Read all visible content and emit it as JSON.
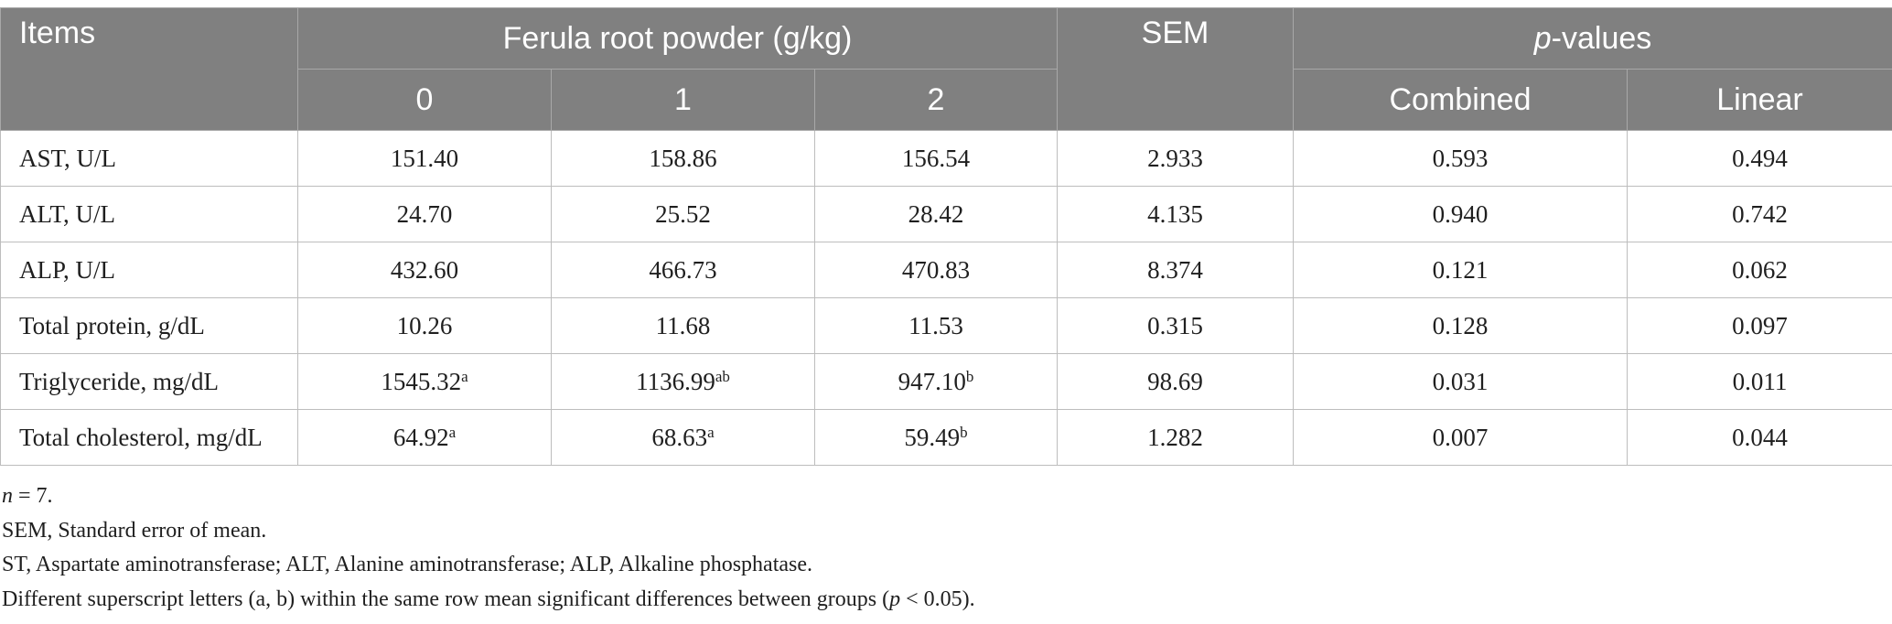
{
  "table": {
    "header": {
      "items": "Items",
      "group": "Ferula root powder (g/kg)",
      "levels": [
        "0",
        "1",
        "2"
      ],
      "sem": "SEM",
      "p_values": {
        "italic": "p",
        "rest": "-values"
      },
      "p_sub": [
        "Combined",
        "Linear"
      ]
    },
    "rows": [
      {
        "label": "AST, U/L",
        "v0": "151.40",
        "v0_sup": "",
        "v1": "158.86",
        "v1_sup": "",
        "v2": "156.54",
        "v2_sup": "",
        "sem": "2.933",
        "combined": "0.593",
        "linear": "0.494"
      },
      {
        "label": "ALT, U/L",
        "v0": "24.70",
        "v0_sup": "",
        "v1": "25.52",
        "v1_sup": "",
        "v2": "28.42",
        "v2_sup": "",
        "sem": "4.135",
        "combined": "0.940",
        "linear": "0.742"
      },
      {
        "label": "ALP, U/L",
        "v0": "432.60",
        "v0_sup": "",
        "v1": "466.73",
        "v1_sup": "",
        "v2": "470.83",
        "v2_sup": "",
        "sem": "8.374",
        "combined": "0.121",
        "linear": "0.062"
      },
      {
        "label": "Total protein, g/dL",
        "v0": "10.26",
        "v0_sup": "",
        "v1": "11.68",
        "v1_sup": "",
        "v2": "11.53",
        "v2_sup": "",
        "sem": "0.315",
        "combined": "0.128",
        "linear": "0.097"
      },
      {
        "label": "Triglyceride, mg/dL",
        "v0": "1545.32",
        "v0_sup": "a",
        "v1": "1136.99",
        "v1_sup": "ab",
        "v2": "947.10",
        "v2_sup": "b",
        "sem": "98.69",
        "combined": "0.031",
        "linear": "0.011"
      },
      {
        "label": "Total cholesterol, mg/dL",
        "v0": "64.92",
        "v0_sup": "a",
        "v1": "68.63",
        "v1_sup": "a",
        "v2": "59.49",
        "v2_sup": "b",
        "sem": "1.282",
        "combined": "0.007",
        "linear": "0.044"
      }
    ]
  },
  "footnotes": {
    "n": {
      "italic": "n",
      "rest": " = 7."
    },
    "sem_def": "SEM, Standard error of mean.",
    "abbrev": "ST, Aspartate aminotransferase; ALT, Alanine aminotransferase; ALP, Alkaline phosphatase.",
    "superscript": {
      "before": "Different superscript letters (a, b) within the same row mean significant differences between groups (",
      "italic": "p",
      "after": " < 0.05)."
    }
  },
  "colors": {
    "header_bg": "#808080",
    "header_text": "#ffffff",
    "border": "#bdbdbd",
    "body_text": "#1f1f1f"
  }
}
